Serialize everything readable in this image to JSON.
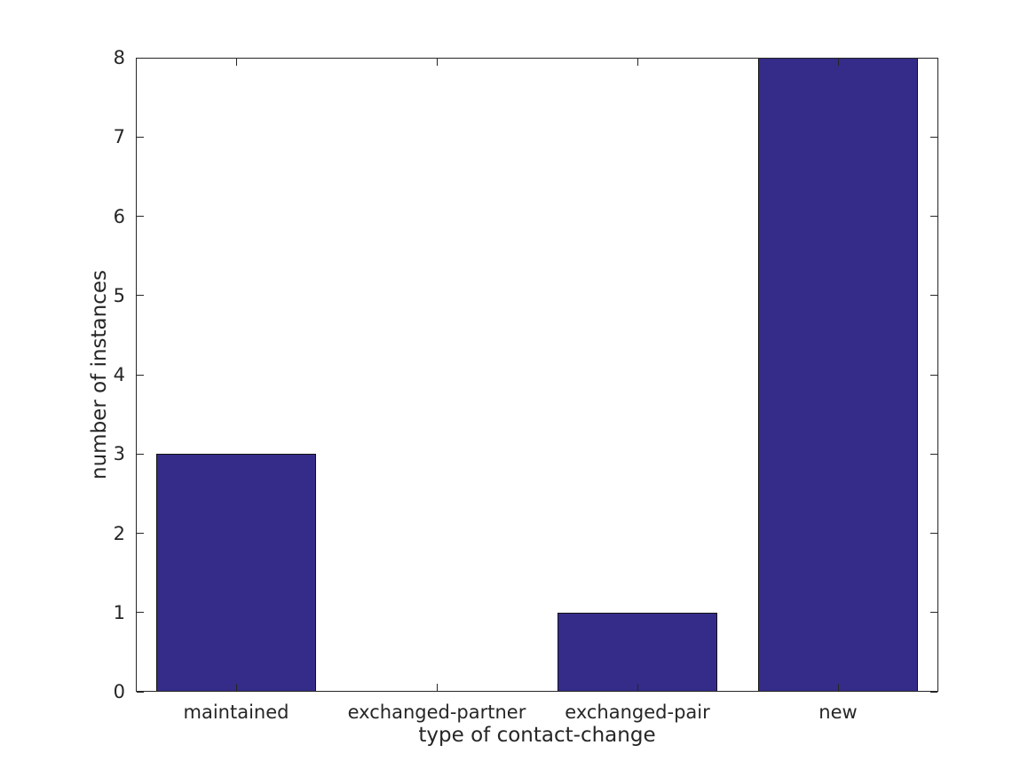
{
  "figure": {
    "background": "#ffffff"
  },
  "chart_data": {
    "type": "bar",
    "title": "",
    "xlabel": "type of contact-change",
    "ylabel": "number of instances",
    "categories": [
      "maintained",
      "exchanged-partner",
      "exchanged-pair",
      "new"
    ],
    "values": [
      3,
      0,
      1,
      8
    ],
    "ylim": [
      0,
      8
    ],
    "yticks": [
      0,
      1,
      2,
      3,
      4,
      5,
      6,
      7,
      8
    ],
    "bar_width_fraction": 0.8,
    "grid": false,
    "legend": null,
    "ticks_inward_all_sides": true,
    "colors": {
      "bar_fill": "#342c88",
      "bar_edge": "#131313",
      "axis": "#262626",
      "text": "#262626",
      "background": "#ffffff"
    }
  }
}
